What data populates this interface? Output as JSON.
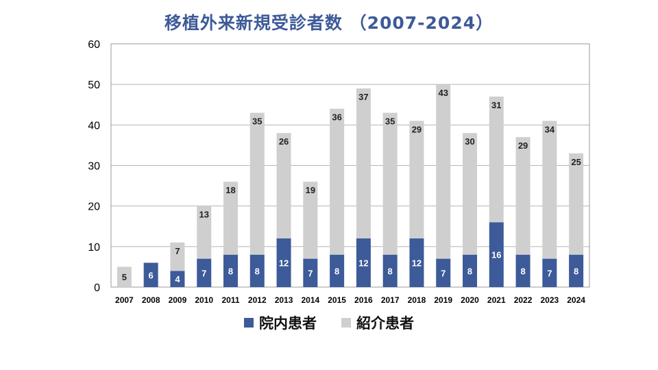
{
  "chart_data": {
    "type": "bar",
    "stacked": true,
    "title": "移植外来新規受診者数 （2007-2024）",
    "categories": [
      "2007",
      "2008",
      "2009",
      "2010",
      "2011",
      "2012",
      "2013",
      "2014",
      "2015",
      "2016",
      "2017",
      "2018",
      "2019",
      "2020",
      "2021",
      "2022",
      "2023",
      "2024"
    ],
    "series": [
      {
        "name": "院内患者",
        "color": "#3d5a99",
        "values": [
          0,
          6,
          4,
          7,
          8,
          8,
          12,
          7,
          8,
          12,
          8,
          12,
          7,
          8,
          16,
          8,
          7,
          8
        ]
      },
      {
        "name": "紹介患者",
        "color": "#d0cfd0",
        "values": [
          5,
          0,
          7,
          13,
          18,
          35,
          26,
          19,
          36,
          37,
          35,
          29,
          43,
          30,
          31,
          29,
          34,
          25
        ]
      }
    ],
    "ylim": [
      0,
      60
    ],
    "yticks": [
      0,
      10,
      20,
      30,
      40,
      50,
      60
    ],
    "grid": true,
    "legend_position": "bottom"
  }
}
